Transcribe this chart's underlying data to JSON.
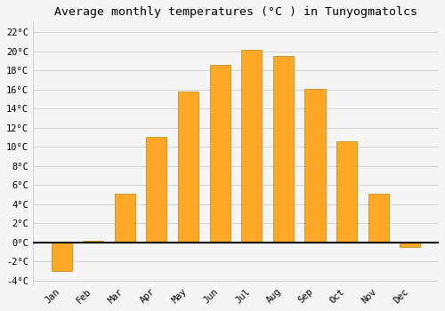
{
  "title": "Average monthly temperatures (°C ) in Tunyogmatolcs",
  "months": [
    "Jan",
    "Feb",
    "Mar",
    "Apr",
    "May",
    "Jun",
    "Jul",
    "Aug",
    "Sep",
    "Oct",
    "Nov",
    "Dec"
  ],
  "values": [
    -3.0,
    0.2,
    5.1,
    11.0,
    15.8,
    18.6,
    20.1,
    19.5,
    16.1,
    10.6,
    5.1,
    -0.5
  ],
  "bar_color": "#FFA726",
  "bar_edge_color": "#B8860B",
  "background_color": "#F5F5F5",
  "grid_color": "#CCCCCC",
  "ylim": [
    -4.5,
    23.0
  ],
  "yticks": [
    -4,
    -2,
    0,
    2,
    4,
    6,
    8,
    10,
    12,
    14,
    16,
    18,
    20,
    22
  ],
  "title_fontsize": 9.5,
  "tick_fontsize": 7.5,
  "zero_line_color": "#000000",
  "bar_width": 0.65
}
